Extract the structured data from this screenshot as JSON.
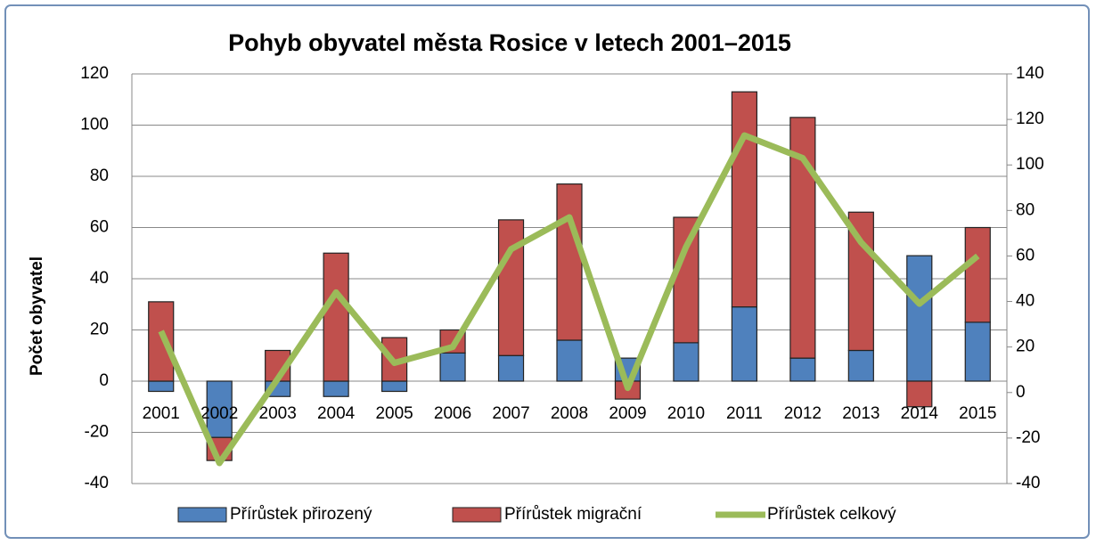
{
  "chart_data": {
    "type": "bar",
    "stacked": true,
    "title": "Pohyb obyvatel města Rosice v letech 2001–2015",
    "y_label": "Počet obyvatel",
    "categories": [
      "2001",
      "2002",
      "2003",
      "2004",
      "2005",
      "2006",
      "2007",
      "2008",
      "2009",
      "2010",
      "2011",
      "2012",
      "2013",
      "2014",
      "2015"
    ],
    "series": [
      {
        "name": "Přírůstek přirozený",
        "type": "bar",
        "color": "#4f81bd",
        "values": [
          -4,
          -22,
          -6,
          -6,
          -4,
          11,
          10,
          16,
          9,
          15,
          29,
          9,
          12,
          49,
          23
        ]
      },
      {
        "name": "Přírůstek migrační",
        "type": "bar",
        "color": "#c0504d",
        "values": [
          31,
          -9,
          12,
          50,
          17,
          9,
          53,
          61,
          -7,
          49,
          84,
          94,
          54,
          -10,
          37
        ]
      },
      {
        "name": "Přírůstek celkový",
        "type": "line",
        "axis": "y2",
        "color": "#9bbb59",
        "values": [
          27,
          -31,
          6,
          44,
          13,
          20,
          63,
          77,
          2,
          64,
          113,
          103,
          66,
          39,
          60
        ]
      }
    ],
    "ylim": [
      -40,
      120
    ],
    "yticks": [
      -40,
      -20,
      0,
      20,
      40,
      60,
      80,
      100,
      120
    ],
    "y2lim": [
      -40,
      140
    ],
    "y2ticks": [
      -40,
      -20,
      0,
      20,
      40,
      60,
      80,
      100,
      120,
      140
    ],
    "grid": true,
    "legend": "bottom"
  }
}
